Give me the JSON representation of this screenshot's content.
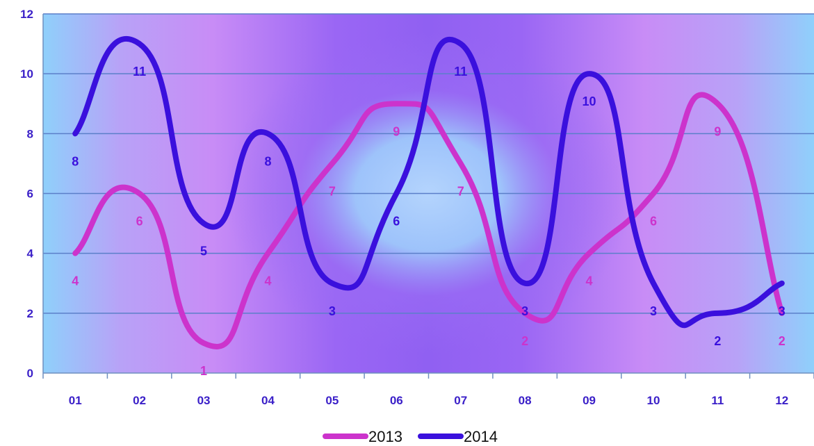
{
  "chart_data": {
    "type": "line",
    "categories": [
      "01",
      "02",
      "03",
      "04",
      "05",
      "06",
      "07",
      "08",
      "09",
      "10",
      "11",
      "12"
    ],
    "series": [
      {
        "name": "2013",
        "color": "#cc33cc",
        "values": [
          4,
          6,
          1,
          4,
          7,
          9,
          7,
          2,
          4,
          6,
          9,
          2
        ]
      },
      {
        "name": "2014",
        "color": "#3a10dd",
        "values": [
          8,
          11,
          5,
          8,
          3,
          6,
          11,
          3,
          10,
          3,
          2,
          3
        ]
      }
    ],
    "y_ticks": [
      "0",
      "2",
      "4",
      "6",
      "8",
      "10",
      "12"
    ],
    "ylim": [
      0,
      12
    ],
    "title": "",
    "xlabel": "",
    "ylabel": "",
    "smooth": true,
    "grid": true,
    "data_labels": true,
    "legend_position": "bottom",
    "tick_color": "#3a1fc8",
    "grid_color": "#5b7fc9"
  }
}
